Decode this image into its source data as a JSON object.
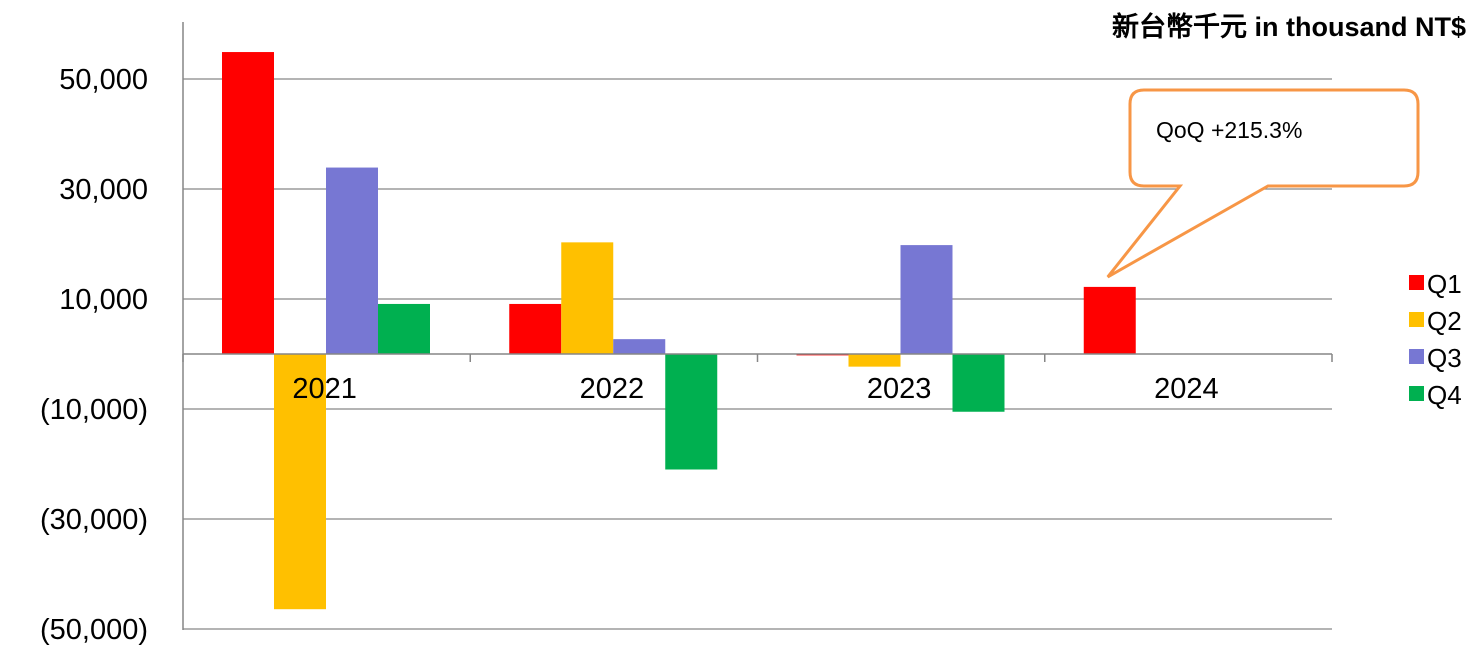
{
  "chart_data": {
    "type": "bar",
    "unit_label": "新台幣千元  in thousand NT$",
    "categories": [
      "2021",
      "2022",
      "2023",
      "2024"
    ],
    "series": [
      {
        "name": "Q1",
        "color": "#FF0000",
        "values": [
          54900,
          9100,
          -250,
          12200
        ]
      },
      {
        "name": "Q2",
        "color": "#FFC000",
        "values": [
          -46400,
          20300,
          -2300,
          null
        ]
      },
      {
        "name": "Q3",
        "color": "#7777D3",
        "values": [
          33900,
          2700,
          19800,
          null
        ]
      },
      {
        "name": "Q4",
        "color": "#00B050",
        "values": [
          9100,
          -21000,
          -10500,
          null
        ]
      }
    ],
    "ylim": [
      -50000,
      60000
    ],
    "yticks": [
      50000,
      30000,
      10000,
      -10000,
      -30000,
      -50000
    ],
    "ytick_labels": [
      "50,000",
      "30,000",
      "10,000",
      "(10,000)",
      "(30,000)",
      "(50,000)"
    ],
    "grid": true,
    "legend_position": "right",
    "annotation": {
      "text": "QoQ  +215.3%",
      "category": "2024",
      "series": "Q1",
      "border_color": "#F79646"
    }
  }
}
